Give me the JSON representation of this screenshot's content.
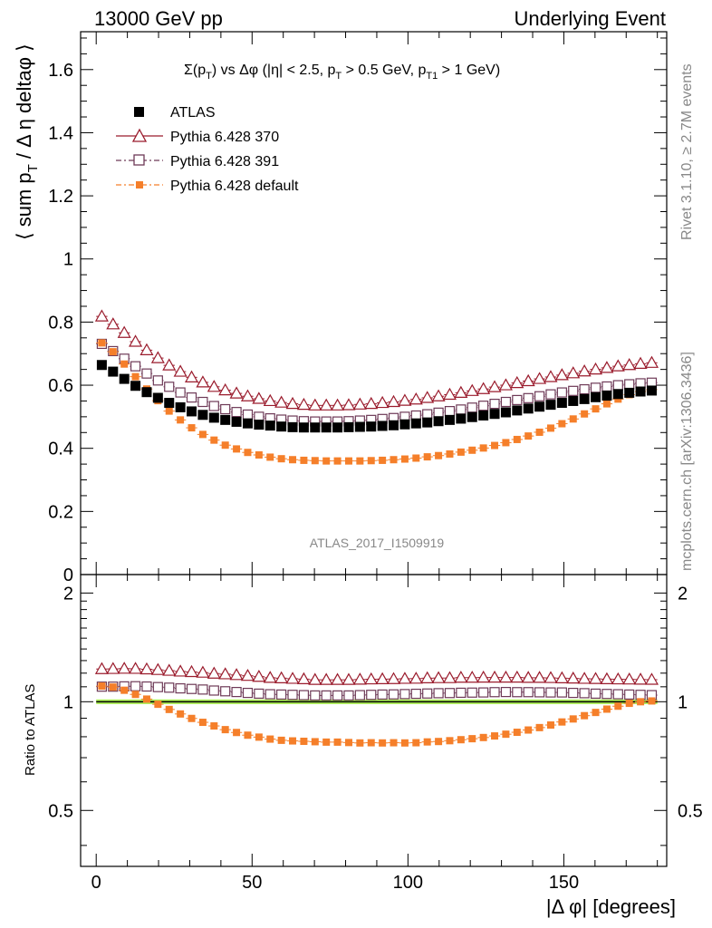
{
  "header": {
    "left": "13000 GeV pp",
    "right": "Underlying Event"
  },
  "side_labels": {
    "rivet": "Rivet 3.1.10, ≥ 2.7M events",
    "mcplots": "mcplots.cern.ch [arXiv:1306.3436]"
  },
  "watermark": "ATLAS_2017_I1509919",
  "colors": {
    "atlas": "#000000",
    "p370": "#9a1b2c",
    "p391": "#6e3a57",
    "pdefault": "#f57f2a",
    "band": "#aef05a"
  },
  "chart_data": [
    {
      "type": "scatter",
      "panel": "main",
      "title": "Σ(p_T) vs Δφ (|η| < 2.5, p_T > 0.5 GeV, p_T1 > 1 GeV)",
      "title_parts": {
        "sigma": "Σ(p",
        "sigma_sub": "T",
        "mid": ") vs Δφ (|η| < 2.5, p",
        "mid_sub": "T",
        "mid2": " > 0.5 GeV, p",
        "mid2_sub": "T1",
        "end": " > 1 GeV)"
      },
      "ylabel": "⟨ sum p_T / Δη deltaφ ⟩",
      "ylabel_parts": {
        "a": "⟨ sum p",
        "a_sub": "T",
        "b": " / Δ η deltaφ ⟩"
      },
      "xlim": [
        -5,
        183
      ],
      "ylim": [
        0,
        1.72
      ],
      "yticks": [
        0,
        0.2,
        0.4,
        0.6,
        0.8,
        1,
        1.2,
        1.4,
        1.6
      ],
      "ytick_labels": [
        "0",
        "0.2",
        "0.4",
        "0.6",
        "0.8",
        "1",
        "1.2",
        "1.4",
        "1.6"
      ],
      "legend_position": "top-left",
      "x": [
        1.8,
        5.4,
        9.0,
        12.6,
        16.2,
        19.8,
        23.4,
        27.0,
        30.6,
        34.2,
        37.8,
        41.4,
        45.0,
        48.6,
        52.2,
        55.8,
        59.4,
        63.0,
        66.6,
        70.2,
        73.8,
        77.4,
        81.0,
        84.6,
        88.2,
        91.8,
        95.4,
        99.0,
        102.6,
        106.2,
        109.8,
        113.4,
        117.0,
        120.6,
        124.2,
        127.8,
        131.4,
        135.0,
        138.6,
        142.2,
        145.8,
        149.4,
        153.0,
        156.6,
        160.2,
        163.8,
        167.4,
        171.0,
        174.6,
        178.2
      ],
      "series": [
        {
          "name": "ATLAS",
          "key": "atlas",
          "marker": "filled-square",
          "values": [
            0.664,
            0.643,
            0.62,
            0.598,
            0.578,
            0.56,
            0.544,
            0.53,
            0.517,
            0.506,
            0.497,
            0.49,
            0.484,
            0.479,
            0.475,
            0.472,
            0.469,
            0.467,
            0.466,
            0.466,
            0.466,
            0.466,
            0.467,
            0.468,
            0.469,
            0.471,
            0.473,
            0.476,
            0.479,
            0.482,
            0.486,
            0.49,
            0.494,
            0.499,
            0.504,
            0.509,
            0.514,
            0.52,
            0.526,
            0.532,
            0.538,
            0.544,
            0.55,
            0.556,
            0.562,
            0.567,
            0.572,
            0.576,
            0.58,
            0.583
          ]
        },
        {
          "name": "Pythia 6.428 370",
          "key": "p370",
          "marker": "open-triangle",
          "values": [
            0.818,
            0.793,
            0.766,
            0.738,
            0.711,
            0.686,
            0.663,
            0.643,
            0.625,
            0.609,
            0.595,
            0.584,
            0.574,
            0.565,
            0.557,
            0.55,
            0.545,
            0.541,
            0.538,
            0.536,
            0.536,
            0.536,
            0.537,
            0.539,
            0.541,
            0.544,
            0.547,
            0.551,
            0.555,
            0.56,
            0.565,
            0.57,
            0.576,
            0.582,
            0.588,
            0.594,
            0.6,
            0.607,
            0.613,
            0.62,
            0.626,
            0.632,
            0.638,
            0.644,
            0.65,
            0.655,
            0.66,
            0.664,
            0.668,
            0.671
          ]
        },
        {
          "name": "Pythia 6.428 391",
          "key": "p391",
          "marker": "open-square",
          "values": [
            0.731,
            0.708,
            0.684,
            0.66,
            0.637,
            0.615,
            0.595,
            0.577,
            0.561,
            0.547,
            0.534,
            0.524,
            0.515,
            0.507,
            0.5,
            0.495,
            0.491,
            0.488,
            0.486,
            0.485,
            0.485,
            0.485,
            0.486,
            0.488,
            0.49,
            0.493,
            0.496,
            0.5,
            0.504,
            0.508,
            0.513,
            0.518,
            0.523,
            0.529,
            0.535,
            0.541,
            0.547,
            0.553,
            0.559,
            0.565,
            0.571,
            0.577,
            0.582,
            0.587,
            0.592,
            0.596,
            0.6,
            0.603,
            0.606,
            0.608
          ]
        },
        {
          "name": "Pythia 6.428 default",
          "key": "pdefault",
          "marker": "filled-small-square",
          "values": [
            0.734,
            0.706,
            0.667,
            0.627,
            0.588,
            0.551,
            0.518,
            0.49,
            0.465,
            0.444,
            0.426,
            0.41,
            0.398,
            0.387,
            0.379,
            0.372,
            0.367,
            0.364,
            0.362,
            0.361,
            0.36,
            0.36,
            0.36,
            0.36,
            0.361,
            0.362,
            0.364,
            0.366,
            0.369,
            0.373,
            0.377,
            0.382,
            0.388,
            0.394,
            0.401,
            0.409,
            0.418,
            0.428,
            0.439,
            0.451,
            0.464,
            0.478,
            0.493,
            0.509,
            0.525,
            0.541,
            0.556,
            0.57,
            0.58,
            0.586
          ]
        }
      ]
    },
    {
      "type": "scatter",
      "panel": "ratio",
      "ylabel": "Ratio to ATLAS",
      "xlabel": "|Δ φ| [degrees]",
      "xlim": [
        -5,
        183
      ],
      "ylim": [
        0.35,
        2.25
      ],
      "yscale": "log",
      "yticks": [
        0.5,
        1,
        2
      ],
      "ytick_labels": [
        "0.5",
        "1",
        "2"
      ],
      "xticks": [
        0,
        50,
        100,
        150
      ],
      "xtick_labels": [
        "0",
        "50",
        "100",
        "150"
      ],
      "reference": 1.0,
      "band": [
        0.985,
        1.015
      ],
      "series": [
        {
          "name": "Pythia 6.428 370",
          "key": "p370",
          "marker": "open-triangle",
          "values": [
            1.232,
            1.233,
            1.235,
            1.234,
            1.23,
            1.225,
            1.219,
            1.213,
            1.209,
            1.204,
            1.197,
            1.192,
            1.186,
            1.18,
            1.173,
            1.165,
            1.162,
            1.158,
            1.155,
            1.15,
            1.15,
            1.15,
            1.15,
            1.152,
            1.154,
            1.155,
            1.156,
            1.158,
            1.159,
            1.162,
            1.163,
            1.163,
            1.166,
            1.166,
            1.167,
            1.167,
            1.167,
            1.167,
            1.165,
            1.165,
            1.164,
            1.162,
            1.16,
            1.158,
            1.157,
            1.155,
            1.154,
            1.153,
            1.152,
            1.151
          ]
        },
        {
          "name": "Pythia 6.428 391",
          "key": "p391",
          "marker": "open-square",
          "values": [
            1.101,
            1.101,
            1.103,
            1.104,
            1.102,
            1.098,
            1.094,
            1.089,
            1.085,
            1.081,
            1.074,
            1.069,
            1.064,
            1.058,
            1.053,
            1.049,
            1.047,
            1.045,
            1.043,
            1.041,
            1.041,
            1.041,
            1.041,
            1.043,
            1.045,
            1.047,
            1.048,
            1.05,
            1.052,
            1.054,
            1.056,
            1.057,
            1.059,
            1.06,
            1.061,
            1.063,
            1.064,
            1.063,
            1.063,
            1.062,
            1.061,
            1.061,
            1.058,
            1.056,
            1.053,
            1.051,
            1.049,
            1.047,
            1.045,
            1.043
          ]
        },
        {
          "name": "Pythia 6.428 default",
          "key": "pdefault",
          "marker": "filled-small-square",
          "values": [
            1.105,
            1.098,
            1.076,
            1.048,
            1.017,
            0.984,
            0.952,
            0.925,
            0.899,
            0.877,
            0.857,
            0.837,
            0.822,
            0.808,
            0.798,
            0.788,
            0.782,
            0.779,
            0.777,
            0.775,
            0.773,
            0.773,
            0.771,
            0.769,
            0.77,
            0.769,
            0.77,
            0.769,
            0.77,
            0.774,
            0.776,
            0.78,
            0.785,
            0.79,
            0.796,
            0.804,
            0.813,
            0.823,
            0.835,
            0.848,
            0.862,
            0.879,
            0.896,
            0.915,
            0.934,
            0.954,
            0.972,
            0.99,
            1.0,
            1.005
          ]
        }
      ]
    }
  ]
}
